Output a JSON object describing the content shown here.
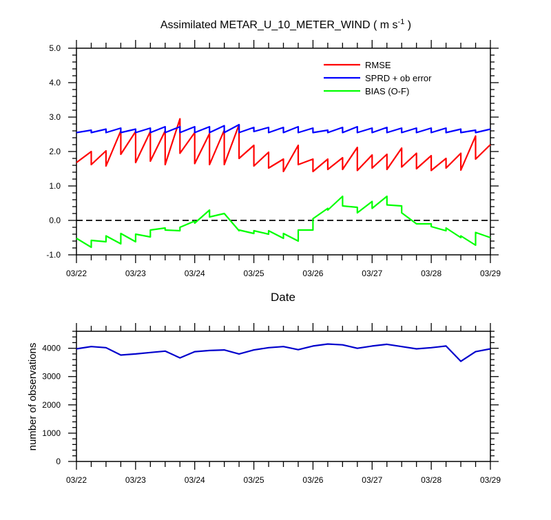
{
  "chart_data": [
    {
      "id": "top",
      "type": "line",
      "title": "Assimilated METAR_U_10_METER_WIND",
      "title_units": "( m s",
      "title_units_sup": "-1",
      "title_units_close": " )",
      "xlabel": "Date",
      "ylabel": "",
      "ylim": [
        -1.0,
        5.0
      ],
      "yticks": [
        -1.0,
        0.0,
        1.0,
        2.0,
        3.0,
        4.0,
        5.0
      ],
      "ytick_labels": [
        "-1.0",
        "0.0",
        "1.0",
        "2.0",
        "3.0",
        "4.0",
        "5.0"
      ],
      "xlim": [
        0,
        7
      ],
      "xticks": [
        0,
        1,
        2,
        3,
        4,
        5,
        6,
        7
      ],
      "xtick_labels": [
        "03/22",
        "03/23",
        "03/24",
        "03/25",
        "03/26",
        "03/27",
        "03/28",
        "03/29"
      ],
      "minor_per_day": 4,
      "zero_line": {
        "y": 0.0,
        "style": "dashed",
        "color": "#000000"
      },
      "legend": {
        "position": "top-right"
      },
      "series": [
        {
          "name": "RMSE",
          "color": "#ff0000",
          "x": [
            0.0,
            0.25,
            0.25,
            0.5,
            0.5,
            0.75,
            0.75,
            1.0,
            1.0,
            1.25,
            1.25,
            1.5,
            1.5,
            1.75,
            1.75,
            2.0,
            2.0,
            2.25,
            2.25,
            2.5,
            2.5,
            2.75,
            2.75,
            3.0,
            3.0,
            3.25,
            3.25,
            3.5,
            3.5,
            3.75,
            3.75,
            4.0,
            4.0,
            4.25,
            4.25,
            4.5,
            4.5,
            4.75,
            4.75,
            5.0,
            5.0,
            5.25,
            5.25,
            5.5,
            5.5,
            5.75,
            5.75,
            6.0,
            6.0,
            6.25,
            6.25,
            6.5,
            6.5,
            6.75,
            6.75,
            7.0
          ],
          "y": [
            1.68,
            2.0,
            1.62,
            2.02,
            1.58,
            2.6,
            1.92,
            2.58,
            1.68,
            2.58,
            1.72,
            2.6,
            1.62,
            2.95,
            1.95,
            2.55,
            1.65,
            2.52,
            1.62,
            2.62,
            1.62,
            2.78,
            1.8,
            2.18,
            1.58,
            1.98,
            1.52,
            1.78,
            1.42,
            2.18,
            1.62,
            1.78,
            1.42,
            1.78,
            1.48,
            1.82,
            1.48,
            2.12,
            1.45,
            1.9,
            1.52,
            1.92,
            1.48,
            2.1,
            1.55,
            1.95,
            1.5,
            1.88,
            1.45,
            1.8,
            1.52,
            1.95,
            1.46,
            2.45,
            1.78,
            2.2
          ]
        },
        {
          "name": "SPRD + ob error",
          "color": "#0000ff",
          "x": [
            0.0,
            0.25,
            0.25,
            0.5,
            0.5,
            0.75,
            0.75,
            1.0,
            1.0,
            1.25,
            1.25,
            1.5,
            1.5,
            1.75,
            1.75,
            2.0,
            2.0,
            2.25,
            2.25,
            2.5,
            2.5,
            2.75,
            2.75,
            3.0,
            3.0,
            3.25,
            3.25,
            3.5,
            3.5,
            3.75,
            3.75,
            4.0,
            4.0,
            4.25,
            4.25,
            4.5,
            4.5,
            4.75,
            4.75,
            5.0,
            5.0,
            5.25,
            5.25,
            5.5,
            5.5,
            5.75,
            5.75,
            6.0,
            6.0,
            6.25,
            6.25,
            6.5,
            6.5,
            6.75,
            6.75,
            7.0
          ],
          "y": [
            2.55,
            2.62,
            2.55,
            2.65,
            2.55,
            2.68,
            2.55,
            2.65,
            2.55,
            2.68,
            2.55,
            2.72,
            2.55,
            2.72,
            2.55,
            2.72,
            2.55,
            2.72,
            2.55,
            2.75,
            2.55,
            2.78,
            2.55,
            2.7,
            2.58,
            2.7,
            2.55,
            2.7,
            2.55,
            2.72,
            2.55,
            2.68,
            2.55,
            2.62,
            2.55,
            2.7,
            2.55,
            2.72,
            2.55,
            2.68,
            2.55,
            2.7,
            2.55,
            2.68,
            2.55,
            2.68,
            2.55,
            2.68,
            2.55,
            2.68,
            2.55,
            2.65,
            2.55,
            2.62,
            2.55,
            2.65
          ]
        },
        {
          "name": "BIAS (O-F)",
          "color": "#00ff00",
          "x": [
            0.0,
            0.25,
            0.25,
            0.5,
            0.5,
            0.75,
            0.75,
            1.0,
            1.0,
            1.25,
            1.25,
            1.5,
            1.5,
            1.75,
            1.75,
            2.0,
            2.0,
            2.25,
            2.25,
            2.5,
            2.5,
            2.75,
            2.75,
            3.0,
            3.0,
            3.25,
            3.25,
            3.5,
            3.5,
            3.75,
            3.75,
            4.0,
            4.0,
            4.25,
            4.25,
            4.5,
            4.5,
            4.75,
            4.75,
            5.0,
            5.0,
            5.25,
            5.25,
            5.5,
            5.5,
            5.75,
            5.75,
            6.0,
            6.0,
            6.25,
            6.25,
            6.5,
            6.5,
            6.75,
            6.75,
            7.0
          ],
          "y": [
            -0.52,
            -0.78,
            -0.58,
            -0.62,
            -0.45,
            -0.68,
            -0.38,
            -0.62,
            -0.4,
            -0.48,
            -0.28,
            -0.22,
            -0.28,
            -0.3,
            -0.2,
            -0.02,
            -0.08,
            0.3,
            0.1,
            0.2,
            0.2,
            -0.3,
            -0.28,
            -0.38,
            -0.3,
            -0.4,
            -0.3,
            -0.52,
            -0.38,
            -0.6,
            -0.28,
            -0.28,
            0.05,
            0.35,
            0.3,
            0.7,
            0.42,
            0.38,
            0.22,
            0.55,
            0.35,
            0.7,
            0.45,
            0.42,
            0.22,
            -0.1,
            -0.1,
            -0.1,
            -0.18,
            -0.3,
            -0.22,
            -0.5,
            -0.45,
            -0.72,
            -0.35,
            -0.5
          ]
        }
      ]
    },
    {
      "id": "bottom",
      "type": "line",
      "title": "",
      "xlabel": "",
      "ylabel": "number of observations",
      "ylim": [
        0,
        4600
      ],
      "yticks": [
        0,
        1000,
        2000,
        3000,
        4000
      ],
      "ytick_labels": [
        "0",
        "1000",
        "2000",
        "3000",
        "4000"
      ],
      "xlim": [
        0,
        7
      ],
      "xticks": [
        0,
        1,
        2,
        3,
        4,
        5,
        6,
        7
      ],
      "xtick_labels": [
        "03/22",
        "03/23",
        "03/24",
        "03/25",
        "03/26",
        "03/27",
        "03/28",
        "03/29"
      ],
      "minor_per_day": 4,
      "series": [
        {
          "name": "observations",
          "color": "#0000cc",
          "x": [
            0,
            0.25,
            0.5,
            0.75,
            1.0,
            1.25,
            1.5,
            1.75,
            2.0,
            2.25,
            2.5,
            2.75,
            3.0,
            3.25,
            3.5,
            3.75,
            4.0,
            4.25,
            4.5,
            4.75,
            5.0,
            5.25,
            5.5,
            5.75,
            6.0,
            6.25,
            6.5,
            6.75,
            7.0
          ],
          "y": [
            3980,
            4060,
            4020,
            3760,
            3800,
            3850,
            3900,
            3660,
            3880,
            3920,
            3940,
            3800,
            3940,
            4020,
            4060,
            3950,
            4080,
            4150,
            4120,
            4000,
            4080,
            4140,
            4060,
            3980,
            4020,
            4080,
            3540,
            3880,
            3980
          ]
        }
      ]
    }
  ]
}
